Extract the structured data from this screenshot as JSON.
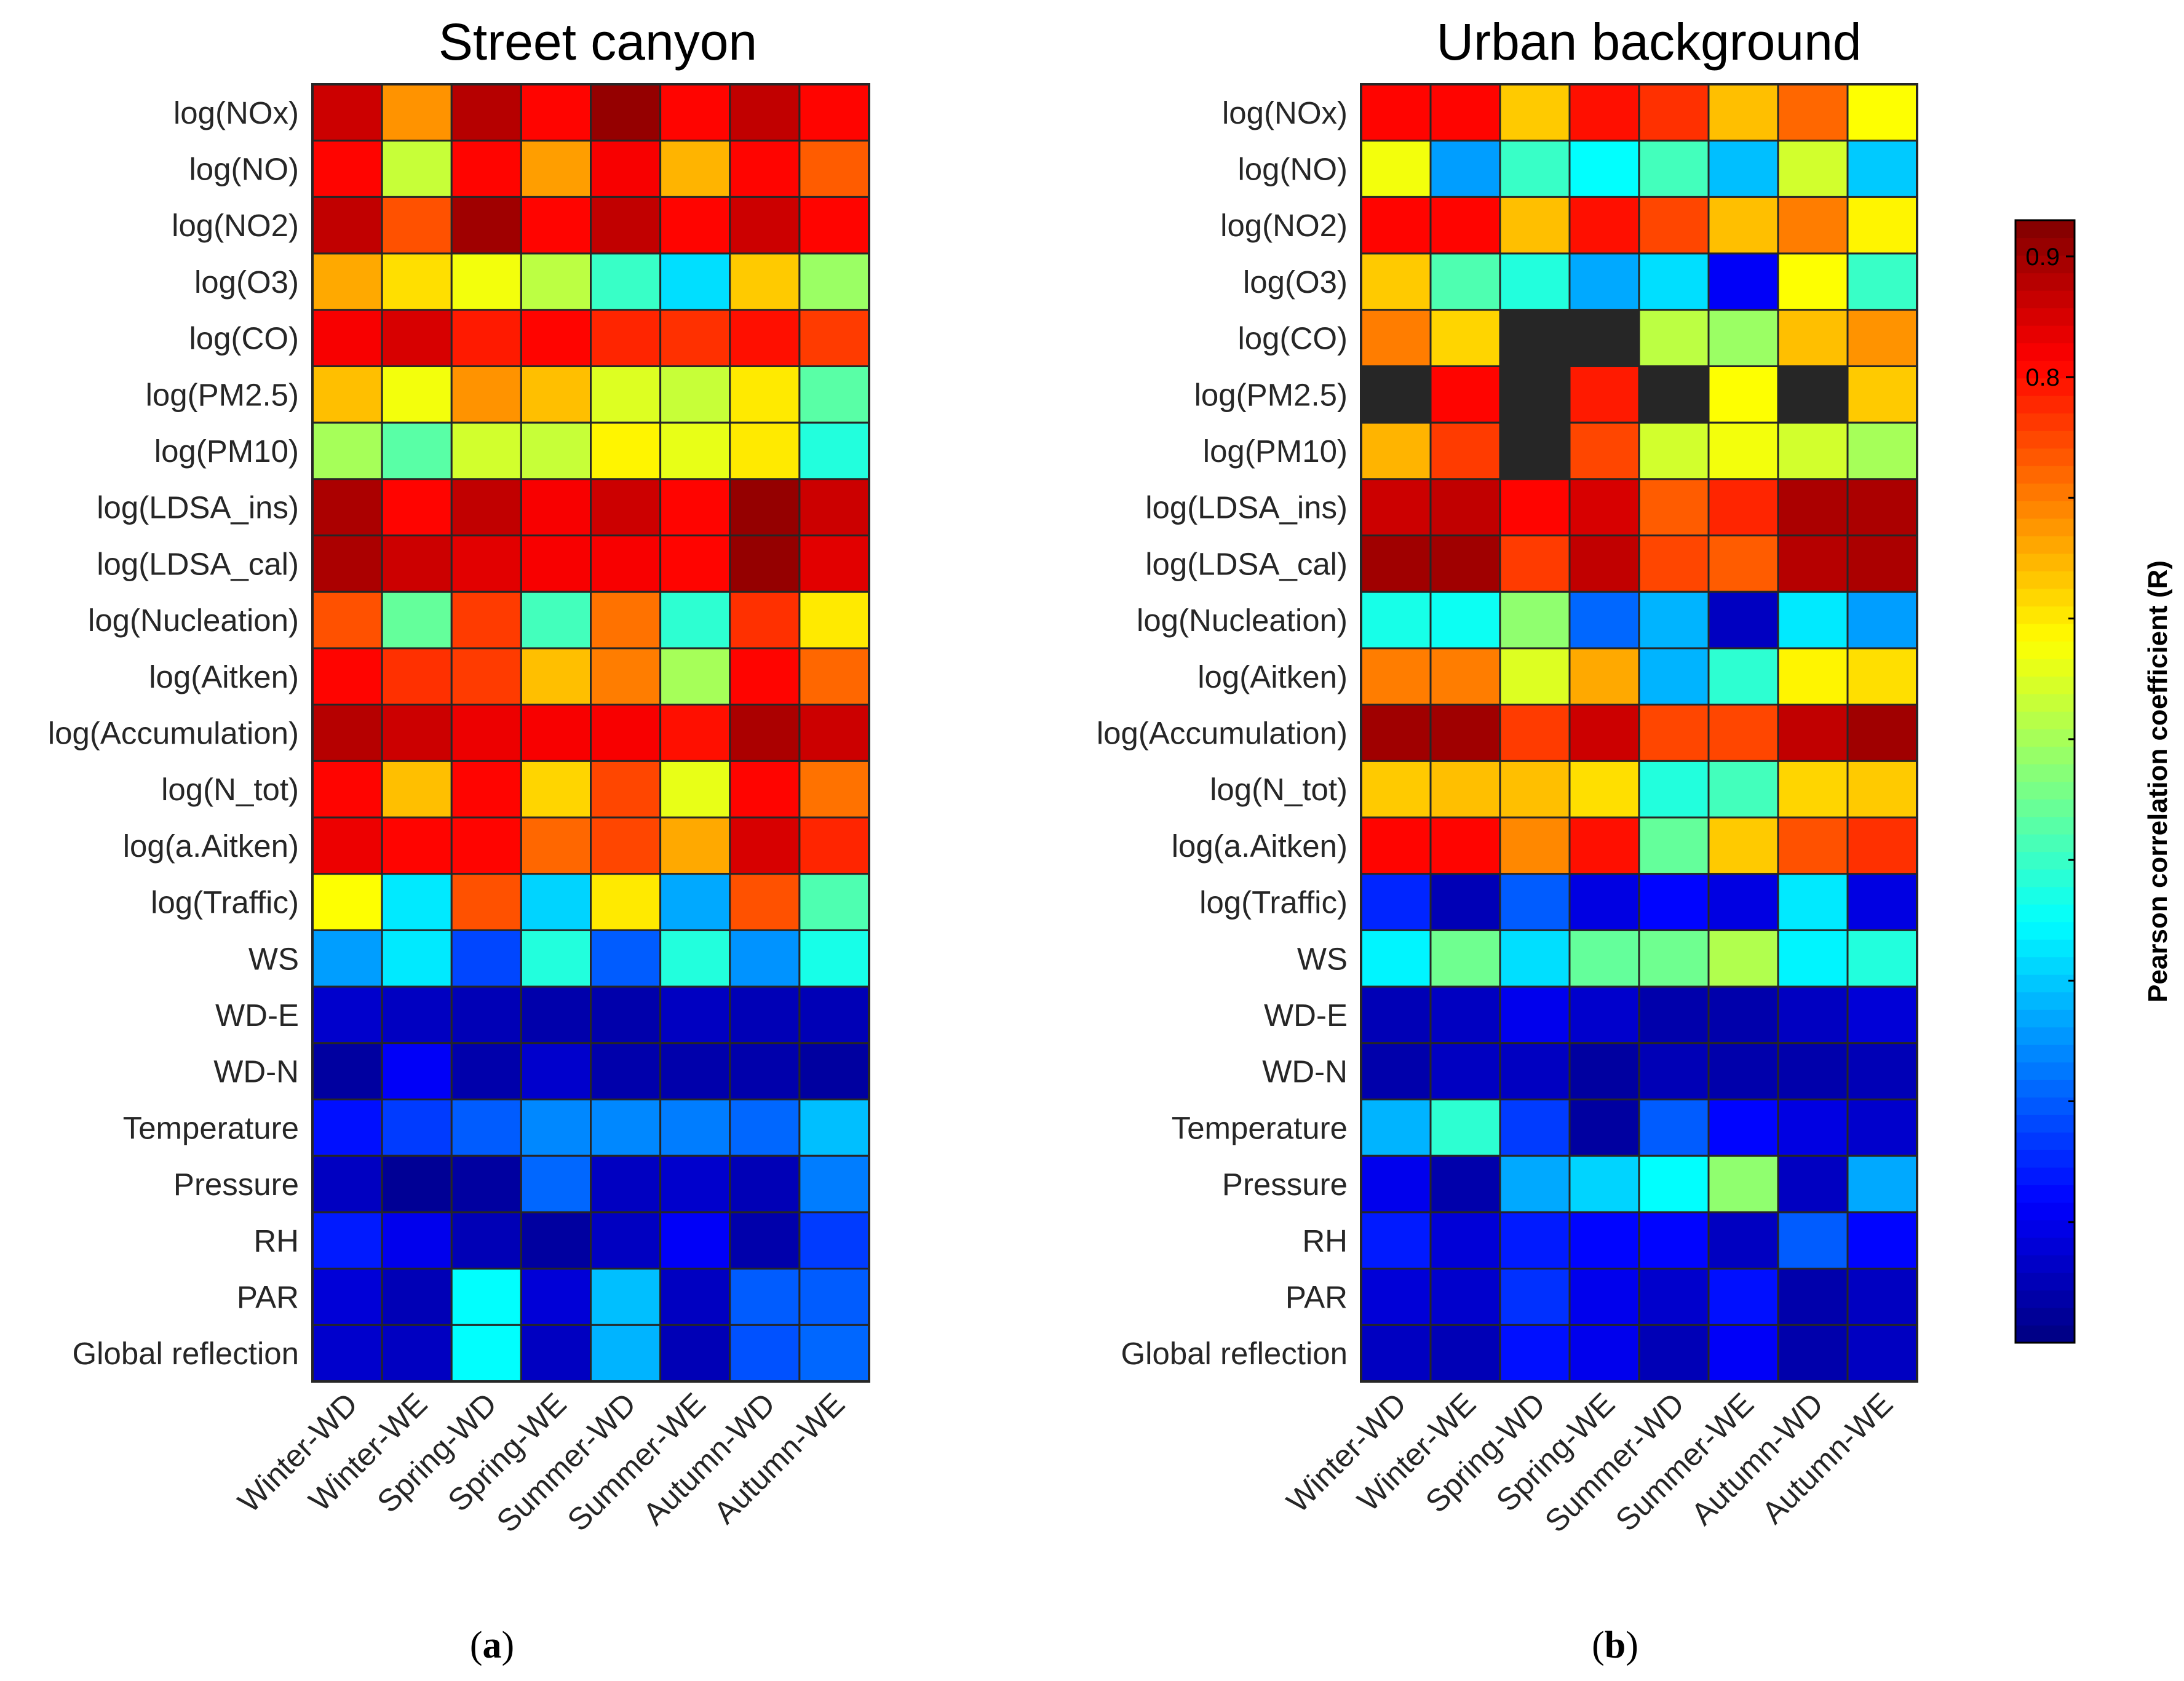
{
  "chart_data": {
    "type": "heatmap",
    "colormap": "jet",
    "value_range": [
      0.0,
      0.93
    ],
    "missing_color": "#262626",
    "rows": [
      "log(NOx)",
      "log(NO)",
      "log(NO2)",
      "log(O3)",
      "log(CO)",
      "log(PM2.5)",
      "log(PM10)",
      "log(LDSA_ins)",
      "log(LDSA_cal)",
      "log(Nucleation)",
      "log(Aitken)",
      "log(Accumulation)",
      "log(N_tot)",
      "log(a.Aitken)",
      "log(Traffic)",
      "WS",
      "WD-E",
      "WD-N",
      "Temperature",
      "Pressure",
      "RH",
      "PAR",
      "Global reflection"
    ],
    "columns": [
      "Winter-WD",
      "Winter-WE",
      "Spring-WD",
      "Spring-WE",
      "Summer-WD",
      "Summer-WE",
      "Autumn-WD",
      "Autumn-WE"
    ],
    "colorbar": {
      "label": "Pearson correlation coefficient (R)",
      "ticks": [
        {
          "value": 0.9,
          "label": "0.9"
        },
        {
          "value": 0.8,
          "label": "0.8"
        }
      ]
    },
    "panels": [
      {
        "title": "Street canyon",
        "sublabel_prefix": "(",
        "sublabel_letter": "a",
        "sublabel_suffix": ")",
        "values": [
          [
            0.86,
            0.68,
            0.88,
            0.81,
            0.91,
            0.81,
            0.87,
            0.81
          ],
          [
            0.81,
            0.53,
            0.81,
            0.67,
            0.82,
            0.65,
            0.81,
            0.73
          ],
          [
            0.87,
            0.74,
            0.9,
            0.81,
            0.87,
            0.81,
            0.86,
            0.81
          ],
          [
            0.66,
            0.61,
            0.57,
            0.52,
            0.4,
            0.32,
            0.63,
            0.49
          ],
          [
            0.82,
            0.85,
            0.79,
            0.81,
            0.78,
            0.77,
            0.8,
            0.76
          ],
          [
            0.64,
            0.57,
            0.68,
            0.64,
            0.55,
            0.53,
            0.6,
            0.43
          ],
          [
            0.5,
            0.43,
            0.54,
            0.53,
            0.59,
            0.56,
            0.6,
            0.38
          ],
          [
            0.89,
            0.81,
            0.87,
            0.82,
            0.86,
            0.81,
            0.91,
            0.86
          ],
          [
            0.89,
            0.86,
            0.84,
            0.82,
            0.82,
            0.81,
            0.91,
            0.84
          ],
          [
            0.74,
            0.44,
            0.76,
            0.41,
            0.71,
            0.39,
            0.77,
            0.6
          ],
          [
            0.81,
            0.77,
            0.76,
            0.64,
            0.7,
            0.5,
            0.81,
            0.72
          ],
          [
            0.88,
            0.86,
            0.83,
            0.82,
            0.82,
            0.8,
            0.89,
            0.86
          ],
          [
            0.81,
            0.64,
            0.81,
            0.62,
            0.75,
            0.56,
            0.81,
            0.71
          ],
          [
            0.83,
            0.81,
            0.81,
            0.72,
            0.75,
            0.66,
            0.85,
            0.78
          ],
          [
            0.58,
            0.33,
            0.74,
            0.31,
            0.6,
            0.27,
            0.74,
            0.42
          ],
          [
            0.26,
            0.33,
            0.18,
            0.38,
            0.2,
            0.38,
            0.25,
            0.37
          ],
          [
            0.07,
            0.06,
            0.05,
            0.04,
            0.04,
            0.06,
            0.05,
            0.05
          ],
          [
            0.03,
            0.11,
            0.04,
            0.07,
            0.04,
            0.04,
            0.04,
            0.03
          ],
          [
            0.13,
            0.17,
            0.2,
            0.24,
            0.24,
            0.23,
            0.21,
            0.29
          ],
          [
            0.06,
            0.02,
            0.03,
            0.21,
            0.06,
            0.07,
            0.05,
            0.23
          ],
          [
            0.14,
            0.1,
            0.05,
            0.03,
            0.06,
            0.11,
            0.04,
            0.17
          ],
          [
            0.08,
            0.05,
            0.35,
            0.08,
            0.29,
            0.06,
            0.2,
            0.2
          ],
          [
            0.07,
            0.06,
            0.35,
            0.06,
            0.28,
            0.05,
            0.19,
            0.21
          ]
        ]
      },
      {
        "title": "Urban background",
        "sublabel_prefix": "(",
        "sublabel_letter": "b",
        "sublabel_suffix": ")",
        "values": [
          [
            0.81,
            0.81,
            0.63,
            0.8,
            0.77,
            0.64,
            0.72,
            0.58
          ],
          [
            0.57,
            0.26,
            0.4,
            0.35,
            0.41,
            0.29,
            0.54,
            0.3
          ],
          [
            0.81,
            0.81,
            0.64,
            0.8,
            0.75,
            0.64,
            0.7,
            0.59
          ],
          [
            0.63,
            0.42,
            0.38,
            0.27,
            0.32,
            0.11,
            0.58,
            0.4
          ],
          [
            0.7,
            0.62,
            null,
            null,
            0.52,
            0.49,
            0.64,
            0.68
          ],
          [
            null,
            0.81,
            null,
            0.79,
            null,
            0.58,
            null,
            0.63
          ],
          [
            0.65,
            0.76,
            null,
            0.75,
            0.54,
            0.57,
            0.54,
            0.5
          ],
          [
            0.86,
            0.87,
            0.81,
            0.85,
            0.73,
            0.78,
            0.89,
            0.89
          ],
          [
            0.9,
            0.9,
            0.76,
            0.87,
            0.75,
            0.73,
            0.88,
            0.89
          ],
          [
            0.37,
            0.36,
            0.48,
            0.21,
            0.28,
            0.06,
            0.33,
            0.26
          ],
          [
            0.7,
            0.7,
            0.55,
            0.66,
            0.28,
            0.39,
            0.59,
            0.61
          ],
          [
            0.9,
            0.9,
            0.76,
            0.86,
            0.75,
            0.75,
            0.87,
            0.9
          ],
          [
            0.63,
            0.64,
            0.64,
            0.61,
            0.38,
            0.41,
            0.62,
            0.63
          ],
          [
            0.81,
            0.81,
            0.69,
            0.8,
            0.44,
            0.63,
            0.74,
            0.77
          ],
          [
            0.15,
            0.05,
            0.2,
            0.09,
            0.12,
            0.09,
            0.33,
            0.09
          ],
          [
            0.34,
            0.45,
            0.32,
            0.44,
            0.45,
            0.51,
            0.34,
            0.38
          ],
          [
            0.05,
            0.06,
            0.1,
            0.07,
            0.04,
            0.04,
            0.06,
            0.08
          ],
          [
            0.04,
            0.06,
            0.06,
            0.03,
            0.05,
            0.04,
            0.04,
            0.05
          ],
          [
            0.28,
            0.39,
            0.17,
            0.03,
            0.2,
            0.12,
            0.09,
            0.07
          ],
          [
            0.1,
            0.04,
            0.27,
            0.31,
            0.35,
            0.48,
            0.06,
            0.27
          ],
          [
            0.14,
            0.08,
            0.14,
            0.12,
            0.12,
            0.06,
            0.2,
            0.12
          ],
          [
            0.08,
            0.07,
            0.16,
            0.1,
            0.07,
            0.13,
            0.04,
            0.06
          ],
          [
            0.06,
            0.05,
            0.13,
            0.1,
            0.05,
            0.11,
            0.04,
            0.06
          ]
        ]
      }
    ]
  }
}
